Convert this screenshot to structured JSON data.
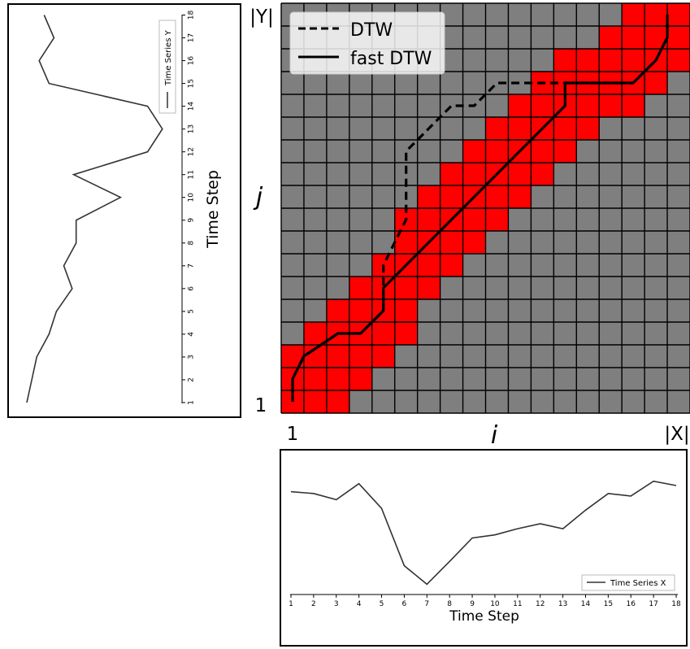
{
  "colors": {
    "grid_bg": "#7f7f7f",
    "window": "#ff0000",
    "grid_line": "#000000",
    "path": "#000000",
    "series_line": "#333333"
  },
  "chart_data": [
    {
      "type": "heatmap",
      "description_role": "dtw-cost-matrix",
      "grid_cols": 18,
      "grid_rows": 18,
      "xlabel": "i",
      "ylabel": "j",
      "x_start_label": "1",
      "x_end_label": "|X|",
      "y_start_label": "1",
      "y_end_label": "|Y|",
      "window_cells_by_column": [
        [
          1,
          3
        ],
        [
          1,
          4
        ],
        [
          1,
          5
        ],
        [
          2,
          6
        ],
        [
          3,
          7
        ],
        [
          4,
          9
        ],
        [
          6,
          10
        ],
        [
          7,
          11
        ],
        [
          8,
          12
        ],
        [
          9,
          13
        ],
        [
          10,
          14
        ],
        [
          11,
          15
        ],
        [
          12,
          16
        ],
        [
          13,
          16
        ],
        [
          14,
          17
        ],
        [
          14,
          18
        ],
        [
          15,
          18
        ],
        [
          16,
          18
        ]
      ],
      "legend": {
        "position": "top-left",
        "entries": [
          "DTW",
          "fast DTW"
        ]
      },
      "series": [
        {
          "name": "DTW",
          "style": "dashed",
          "x": [
            1,
            1,
            1.5,
            3,
            4,
            5,
            5,
            5,
            5.5,
            6,
            6,
            6,
            6,
            7,
            8,
            9,
            10,
            11,
            12,
            13,
            14,
            15,
            16,
            17,
            17.5,
            17.5
          ],
          "y": [
            1,
            2,
            3,
            4,
            4,
            5,
            6,
            7,
            8,
            9,
            10,
            11,
            12,
            13,
            14,
            14,
            15,
            15,
            15,
            15,
            15,
            15,
            15,
            16,
            17,
            18
          ]
        },
        {
          "name": "fast DTW",
          "style": "solid",
          "x": [
            1,
            1,
            1.5,
            3,
            4,
            5,
            5,
            6,
            7,
            8,
            9,
            10,
            11,
            12,
            13,
            13,
            14,
            15,
            16,
            17,
            17.5,
            17.5
          ],
          "y": [
            1,
            2,
            3,
            4,
            4,
            5,
            6,
            7,
            8,
            9,
            10,
            11,
            12,
            13,
            14,
            15,
            15,
            15,
            15,
            16,
            17,
            18
          ]
        }
      ]
    },
    {
      "type": "line",
      "orientation": "vertical",
      "ylabel": "Time Step",
      "ticks": [
        "1",
        "2",
        "3",
        "4",
        "5",
        "6",
        "7",
        "8",
        "9",
        "10",
        "11",
        "12",
        "13",
        "14",
        "15",
        "16",
        "17",
        "18"
      ],
      "legend": {
        "position": "top-right",
        "entries": [
          "Time Series Y"
        ]
      },
      "series": [
        {
          "name": "Time Series Y",
          "x": [
            1,
            2,
            3,
            4,
            5,
            6,
            7,
            8,
            9,
            10,
            11,
            12,
            13,
            14,
            15,
            16,
            17,
            18
          ],
          "values": [
            0.05,
            0.15,
            0.25,
            0.5,
            0.65,
            0.97,
            0.8,
            1.05,
            1.05,
            1.95,
            1.0,
            2.5,
            2.8,
            2.5,
            0.5,
            0.3,
            0.6,
            0.4
          ]
        }
      ]
    },
    {
      "type": "line",
      "xlabel": "Time Step",
      "ticks": [
        "1",
        "2",
        "3",
        "4",
        "5",
        "6",
        "7",
        "8",
        "9",
        "10",
        "11",
        "12",
        "13",
        "14",
        "15",
        "16",
        "17",
        "18"
      ],
      "legend": {
        "position": "bottom-right",
        "entries": [
          "Time Series X"
        ]
      },
      "series": [
        {
          "name": "Time Series X",
          "x": [
            1,
            2,
            3,
            4,
            5,
            6,
            7,
            8,
            9,
            10,
            11,
            12,
            13,
            14,
            15,
            16,
            17,
            18
          ],
          "values": [
            1.0,
            0.97,
            0.87,
            1.13,
            0.73,
            -0.2,
            -0.5,
            -0.13,
            0.25,
            0.3,
            0.4,
            0.48,
            0.4,
            0.7,
            0.97,
            0.93,
            1.17,
            1.1
          ]
        }
      ]
    }
  ]
}
